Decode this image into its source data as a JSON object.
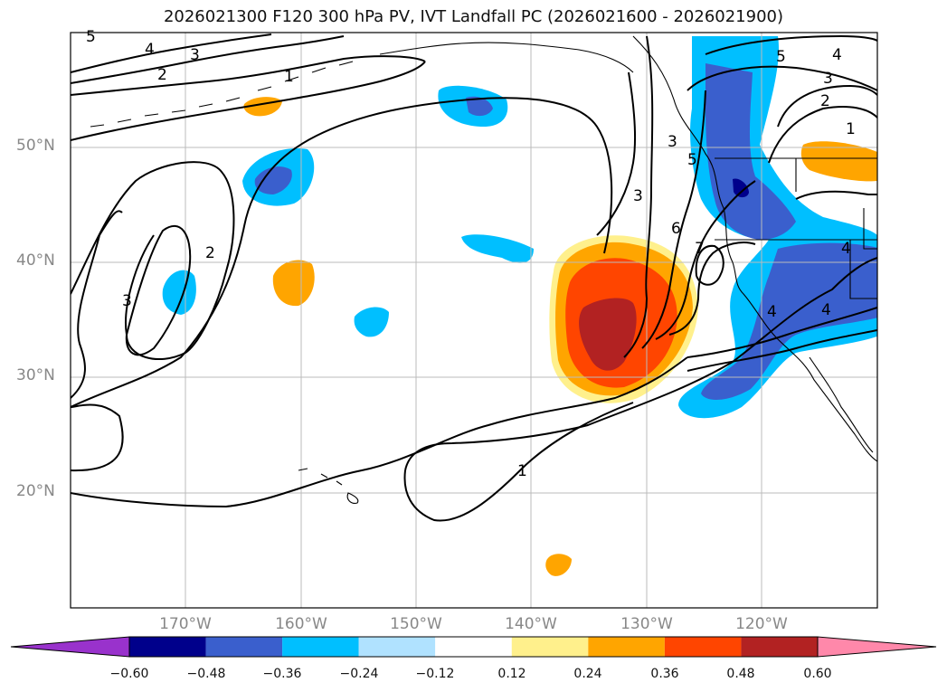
{
  "title": "2026021300 F120 300 hPa PV, IVT Landfall PC (2026021600 - 2026021900)",
  "lat_axis": {
    "ticks": [
      "50°N",
      "40°N",
      "30°N",
      "20°N"
    ]
  },
  "lon_axis": {
    "ticks": [
      "170°W",
      "160°W",
      "150°W",
      "140°W",
      "130°W",
      "120°W"
    ]
  },
  "colorbar": {
    "tick_labels": [
      "−0.60",
      "−0.48",
      "−0.36",
      "−0.24",
      "−0.12",
      "0.12",
      "0.24",
      "0.36",
      "0.48",
      "0.60"
    ],
    "colors": [
      "#9932cc",
      "#00008b",
      "#3a5fcd",
      "#00bfff",
      "#b0e2ff",
      "#ffffff",
      "#fff08c",
      "#ffa500",
      "#ff4500",
      "#b22222",
      "#ff88aa"
    ],
    "extend": "both"
  },
  "contour_labels": [
    "5",
    "4",
    "3",
    "2",
    "1",
    "3",
    "2",
    "3",
    "1",
    "3",
    "6",
    "7",
    "5",
    "4",
    "3",
    "2",
    "1",
    "4",
    "4",
    "5",
    "4"
  ],
  "map_extent": {
    "lon": [
      -180,
      -110
    ],
    "lat": [
      10,
      60
    ]
  }
}
